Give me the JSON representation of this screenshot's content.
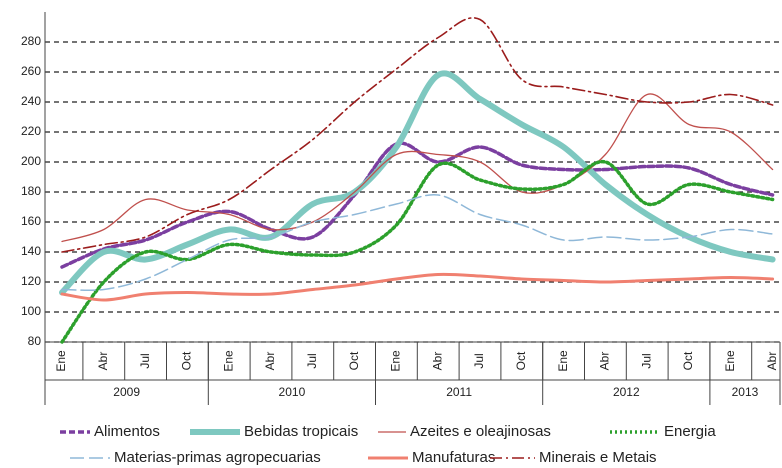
{
  "chart_data": {
    "type": "line",
    "categories": [
      "Ene",
      "Abr",
      "Jul",
      "Oct",
      "Ene",
      "Abr",
      "Jul",
      "Oct",
      "Ene",
      "Abr",
      "Jul",
      "Oct",
      "Ene",
      "Abr",
      "Jul",
      "Oct",
      "Ene",
      "Abr"
    ],
    "year_groups": [
      "2009",
      "2010",
      "2011",
      "2012",
      "2013"
    ],
    "ylim": [
      80,
      300
    ],
    "yticks": [
      80,
      100,
      120,
      140,
      160,
      180,
      200,
      220,
      240,
      260,
      280
    ],
    "grid": true,
    "series": [
      {
        "name": "Alimentos",
        "color": "#7b3fa0",
        "values": [
          130,
          142,
          148,
          160,
          167,
          155,
          150,
          178,
          212,
          200,
          210,
          198,
          195,
          195,
          197,
          196,
          185,
          178
        ]
      },
      {
        "name": "Bebidas tropicais",
        "color": "#7ec8c0",
        "values": [
          113,
          140,
          135,
          145,
          155,
          150,
          172,
          180,
          210,
          258,
          242,
          225,
          210,
          185,
          165,
          150,
          140,
          135
        ]
      },
      {
        "name": "Azeites e oleajinosas",
        "color": "#c0504d",
        "values": [
          147,
          155,
          175,
          168,
          165,
          155,
          160,
          180,
          205,
          205,
          200,
          180,
          185,
          205,
          245,
          225,
          220,
          195
        ]
      },
      {
        "name": "Energia",
        "color": "#2ca02c",
        "values": [
          80,
          120,
          140,
          135,
          145,
          140,
          138,
          140,
          158,
          198,
          188,
          182,
          185,
          200,
          172,
          185,
          180,
          175
        ]
      },
      {
        "name": "Materias-primas agropecuarias",
        "color": "#8fb8d8",
        "values": [
          115,
          115,
          122,
          135,
          148,
          150,
          160,
          165,
          172,
          178,
          165,
          158,
          148,
          150,
          148,
          150,
          155,
          152
        ]
      },
      {
        "name": "Manufaturas",
        "color": "#f08070",
        "values": [
          112,
          108,
          112,
          113,
          112,
          112,
          115,
          118,
          122,
          125,
          124,
          122,
          121,
          120,
          121,
          122,
          123,
          122
        ]
      },
      {
        "name": "Minerais e Metais",
        "color": "#9b1c1c",
        "values": [
          140,
          145,
          150,
          165,
          175,
          195,
          215,
          240,
          262,
          283,
          295,
          255,
          250,
          245,
          240,
          240,
          245,
          238
        ]
      }
    ]
  }
}
